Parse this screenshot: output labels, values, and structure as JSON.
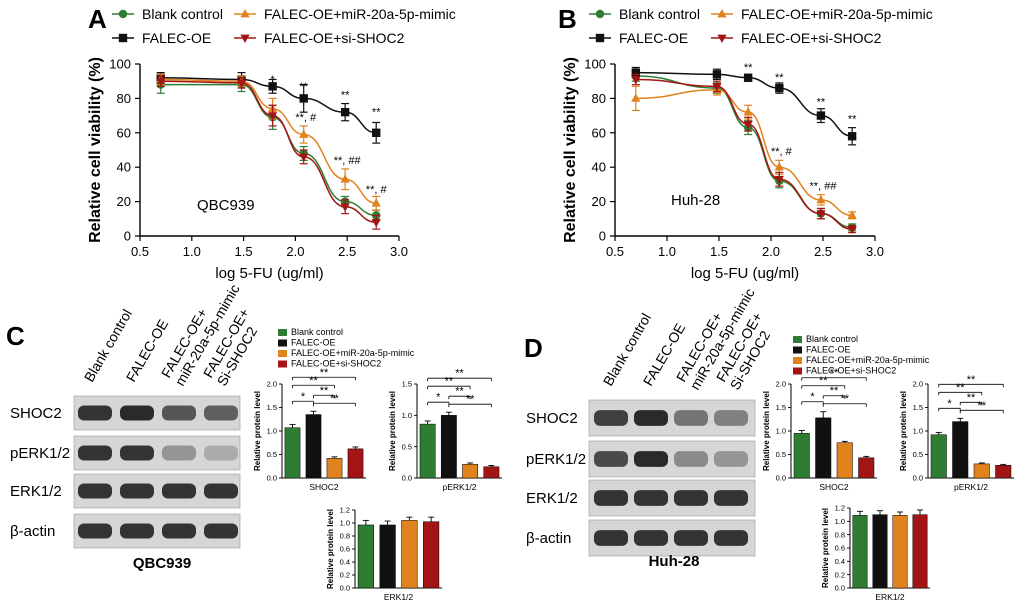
{
  "legend": [
    {
      "name": "Blank control",
      "color": "#2e7d32",
      "marker": "circle"
    },
    {
      "name": "FALEC-OE",
      "color": "#111111",
      "marker": "square"
    },
    {
      "name": "FALEC-OE+miR-20a-5p-mimic",
      "color": "#e0821e",
      "marker": "triangle-up"
    },
    {
      "name": "FALEC-OE+si-SHOC2",
      "color": "#a31515",
      "marker": "triangle-down"
    }
  ],
  "chart_data": [
    {
      "panel": "A",
      "type": "line",
      "cell_label": "QBC939",
      "xlabel": "log 5-FU (ug/ml)",
      "ylabel": "Relative cell viability (%)",
      "xlim": [
        0.5,
        3.0
      ],
      "ylim": [
        0,
        100
      ],
      "xticks": [
        "0.5",
        "1.0",
        "1.5",
        "2.0",
        "2.5",
        "3.0"
      ],
      "yticks": [
        "0",
        "20",
        "40",
        "60",
        "80",
        "100"
      ],
      "x": [
        0.7,
        1.48,
        1.78,
        2.08,
        2.48,
        2.78
      ],
      "series": [
        {
          "name": "Blank control",
          "values": [
            88,
            88,
            69,
            48,
            20,
            12
          ],
          "err": [
            5,
            4,
            7,
            4,
            3,
            3
          ]
        },
        {
          "name": "FALEC-OE",
          "values": [
            92,
            91,
            87,
            80,
            72,
            60
          ],
          "err": [
            3,
            4,
            4,
            8,
            5,
            6
          ]
        },
        {
          "name": "FALEC-OE+miR-20a-5p-mimic",
          "values": [
            91,
            90,
            74,
            59,
            33,
            19
          ],
          "err": [
            3,
            3,
            6,
            5,
            6,
            4
          ]
        },
        {
          "name": "FALEC-OE+si-SHOC2",
          "values": [
            90,
            89,
            70,
            46,
            17,
            8
          ],
          "err": [
            3,
            3,
            6,
            4,
            4,
            4
          ]
        }
      ],
      "annotations": [
        {
          "x": 1.78,
          "y": 89,
          "text": "*"
        },
        {
          "x": 2.08,
          "y": 85,
          "text": "**"
        },
        {
          "x": 2.48,
          "y": 80,
          "text": "**"
        },
        {
          "x": 2.78,
          "y": 70,
          "text": "**"
        },
        {
          "x": 2.1,
          "y": 67,
          "text": "**, #"
        },
        {
          "x": 2.5,
          "y": 42,
          "text": "**, ##"
        },
        {
          "x": 2.78,
          "y": 25,
          "text": "**, #"
        }
      ]
    },
    {
      "panel": "B",
      "type": "line",
      "cell_label": "Huh-28",
      "xlabel": "log 5-FU (ug/ml)",
      "ylabel": "Relative cell viability (%)",
      "xlim": [
        0.5,
        3.0
      ],
      "ylim": [
        0,
        100
      ],
      "xticks": [
        "0.5",
        "1.0",
        "1.5",
        "2.0",
        "2.5",
        "3.0"
      ],
      "yticks": [
        "0",
        "20",
        "40",
        "60",
        "80",
        "100"
      ],
      "x": [
        0.7,
        1.48,
        1.78,
        2.08,
        2.48,
        2.78
      ],
      "series": [
        {
          "name": "Blank control",
          "values": [
            93,
            86,
            63,
            32,
            13,
            5
          ],
          "err": [
            3,
            3,
            4,
            4,
            3,
            2
          ]
        },
        {
          "name": "FALEC-OE",
          "values": [
            95,
            94,
            92,
            86,
            70,
            58
          ],
          "err": [
            3,
            3,
            2,
            3,
            4,
            5
          ]
        },
        {
          "name": "FALEC-OE+miR-20a-5p-mimic",
          "values": [
            80,
            85,
            72,
            40,
            21,
            12
          ],
          "err": [
            7,
            3,
            4,
            4,
            3,
            2
          ]
        },
        {
          "name": "FALEC-OE+si-SHOC2",
          "values": [
            91,
            87,
            65,
            33,
            13,
            4
          ],
          "err": [
            3,
            3,
            4,
            4,
            3,
            2
          ]
        }
      ],
      "annotations": [
        {
          "x": 1.78,
          "y": 96,
          "text": "**"
        },
        {
          "x": 2.08,
          "y": 90,
          "text": "**"
        },
        {
          "x": 2.48,
          "y": 76,
          "text": "**"
        },
        {
          "x": 2.78,
          "y": 66,
          "text": "**"
        },
        {
          "x": 2.1,
          "y": 47,
          "text": "**, #"
        },
        {
          "x": 2.5,
          "y": 27,
          "text": "**, ##"
        }
      ]
    },
    {
      "panel": "C",
      "type": "bar",
      "title": "SHOC2",
      "ylabel": "Relative protein level",
      "ylim": [
        0,
        2.0
      ],
      "yticks": [
        "0.0",
        "0.5",
        "1.0",
        "1.5",
        "2.0"
      ],
      "values": [
        1.07,
        1.35,
        0.42,
        0.62
      ],
      "err": [
        0.07,
        0.07,
        0.03,
        0.04
      ],
      "brackets": [
        {
          "a": 0,
          "b": 1,
          "text": "*"
        },
        {
          "a": 1,
          "b": 2,
          "text": "**"
        },
        {
          "a": 1,
          "b": 3,
          "text": "**"
        },
        {
          "a": 0,
          "b": 2,
          "text": "**"
        },
        {
          "a": 0,
          "b": 3,
          "text": "**"
        }
      ]
    },
    {
      "panel": "C",
      "type": "bar",
      "title": "pERK1/2",
      "ylabel": "Relative protein level",
      "ylim": [
        0,
        1.5
      ],
      "yticks": [
        "0.0",
        "0.5",
        "1.0",
        "1.5"
      ],
      "values": [
        0.86,
        1.0,
        0.22,
        0.18
      ],
      "err": [
        0.05,
        0.05,
        0.02,
        0.02
      ],
      "brackets": [
        {
          "a": 0,
          "b": 1,
          "text": "*"
        },
        {
          "a": 1,
          "b": 2,
          "text": "**"
        },
        {
          "a": 1,
          "b": 3,
          "text": "**"
        },
        {
          "a": 0,
          "b": 2,
          "text": "**"
        },
        {
          "a": 0,
          "b": 3,
          "text": "**"
        }
      ]
    },
    {
      "panel": "C",
      "type": "bar",
      "title": "ERK1/2",
      "ylabel": "Relative protein level",
      "ylim": [
        0,
        1.2
      ],
      "yticks": [
        "0.0",
        "0.2",
        "0.4",
        "0.6",
        "0.8",
        "1.0",
        "1.2"
      ],
      "values": [
        0.97,
        0.97,
        1.04,
        1.02
      ],
      "err": [
        0.07,
        0.06,
        0.05,
        0.07
      ],
      "brackets": []
    },
    {
      "panel": "D",
      "type": "bar",
      "title": "SHOC2",
      "ylabel": "Relative protein level",
      "ylim": [
        0,
        2.0
      ],
      "yticks": [
        "0.0",
        "0.5",
        "1.0",
        "1.5",
        "2.0"
      ],
      "values": [
        0.95,
        1.28,
        0.75,
        0.43
      ],
      "err": [
        0.06,
        0.13,
        0.03,
        0.03
      ],
      "brackets": [
        {
          "a": 0,
          "b": 1,
          "text": "*"
        },
        {
          "a": 1,
          "b": 2,
          "text": "**"
        },
        {
          "a": 1,
          "b": 3,
          "text": "**"
        },
        {
          "a": 0,
          "b": 2,
          "text": "**"
        },
        {
          "a": 0,
          "b": 3,
          "text": "**"
        }
      ]
    },
    {
      "panel": "D",
      "type": "bar",
      "title": "pERK1/2",
      "ylabel": "Relative protein level",
      "ylim": [
        0,
        2.0
      ],
      "yticks": [
        "0.0",
        "0.5",
        "1.0",
        "1.5",
        "2.0"
      ],
      "values": [
        0.92,
        1.2,
        0.3,
        0.27
      ],
      "err": [
        0.05,
        0.07,
        0.02,
        0.02
      ],
      "brackets": [
        {
          "a": 0,
          "b": 1,
          "text": "*"
        },
        {
          "a": 1,
          "b": 2,
          "text": "**"
        },
        {
          "a": 1,
          "b": 3,
          "text": "**"
        },
        {
          "a": 0,
          "b": 2,
          "text": "**"
        },
        {
          "a": 0,
          "b": 3,
          "text": "**"
        }
      ]
    },
    {
      "panel": "D",
      "type": "bar",
      "title": "ERK1/2",
      "ylabel": "Relative protein level",
      "ylim": [
        0,
        1.2
      ],
      "yticks": [
        "0.0",
        "0.2",
        "0.4",
        "0.6",
        "0.8",
        "1.0",
        "1.2"
      ],
      "values": [
        1.09,
        1.1,
        1.09,
        1.1
      ],
      "err": [
        0.06,
        0.06,
        0.05,
        0.07
      ],
      "brackets": []
    }
  ],
  "blots": [
    {
      "panel": "C",
      "cell_label": "QBC939",
      "lanes": [
        "Blank control",
        "FALEC-OE",
        "FALEC-OE+ miR-20a-5p-mimic",
        "FALEC-OE+ Si-SHOC2"
      ],
      "proteins": [
        {
          "name": "SHOC2",
          "intensity": [
            0.85,
            0.9,
            0.7,
            0.65
          ]
        },
        {
          "name": "pERK1/2",
          "intensity": [
            0.85,
            0.85,
            0.4,
            0.3
          ]
        },
        {
          "name": "ERK1/2",
          "intensity": [
            0.85,
            0.85,
            0.85,
            0.85
          ]
        },
        {
          "name": "β-actin",
          "intensity": [
            0.85,
            0.85,
            0.85,
            0.85
          ]
        }
      ]
    },
    {
      "panel": "D",
      "cell_label": "Huh-28",
      "lanes": [
        "Blank control",
        "FALEC-OE",
        "FALEC-OE+ miR-20a-5p-mimic",
        "FALEC-OE+ Si-SHOC2"
      ],
      "proteins": [
        {
          "name": "SHOC2",
          "intensity": [
            0.8,
            0.9,
            0.55,
            0.5
          ]
        },
        {
          "name": "pERK1/2",
          "intensity": [
            0.75,
            0.9,
            0.45,
            0.4
          ]
        },
        {
          "name": "ERK1/2",
          "intensity": [
            0.85,
            0.85,
            0.85,
            0.85
          ]
        },
        {
          "name": "β-actin",
          "intensity": [
            0.85,
            0.85,
            0.85,
            0.85
          ]
        }
      ]
    }
  ],
  "legend_small": [
    "Blank control",
    "FALEC-OE",
    "FALEC-OE+miR-20a-5p-mimic",
    "FALEC-OE+si-SHOC2"
  ]
}
